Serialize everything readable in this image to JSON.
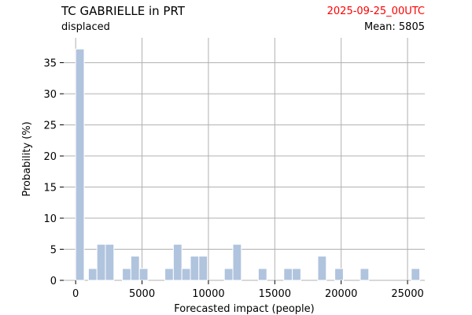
{
  "header": {
    "title": "TC GABRIELLE in PRT",
    "subtitle": "displaced",
    "date": "2025-09-25_00UTC",
    "mean_label": "Mean: 5805"
  },
  "colors": {
    "bar": "#b0c4de",
    "grid": "#b0b0b0",
    "date": "#ff0000"
  },
  "chart_data": {
    "type": "bar",
    "title": "TC GABRIELLE in PRT",
    "subtitle": "displaced",
    "xlabel": "Forecasted impact (people)",
    "ylabel": "Probability (%)",
    "xlim": [
      -900,
      26300
    ],
    "ylim": [
      0,
      39
    ],
    "grid": true,
    "bin_width": 640,
    "x_ticks": [
      0,
      5000,
      10000,
      15000,
      20000,
      25000
    ],
    "y_ticks": [
      0,
      5,
      10,
      15,
      20,
      25,
      30,
      35
    ],
    "bins": [
      {
        "x": 0,
        "value": 37.2
      },
      {
        "x": 960,
        "value": 1.9
      },
      {
        "x": 1600,
        "value": 5.8
      },
      {
        "x": 2240,
        "value": 5.8
      },
      {
        "x": 3520,
        "value": 1.9
      },
      {
        "x": 4160,
        "value": 3.9
      },
      {
        "x": 4800,
        "value": 1.9
      },
      {
        "x": 6720,
        "value": 1.9
      },
      {
        "x": 7360,
        "value": 5.8
      },
      {
        "x": 8000,
        "value": 1.9
      },
      {
        "x": 8640,
        "value": 3.9
      },
      {
        "x": 9280,
        "value": 3.9
      },
      {
        "x": 11200,
        "value": 1.9
      },
      {
        "x": 11840,
        "value": 5.8
      },
      {
        "x": 13760,
        "value": 1.9
      },
      {
        "x": 15680,
        "value": 1.9
      },
      {
        "x": 16320,
        "value": 1.9
      },
      {
        "x": 18240,
        "value": 3.9
      },
      {
        "x": 19520,
        "value": 1.9
      },
      {
        "x": 21440,
        "value": 1.9
      },
      {
        "x": 25280,
        "value": 1.9
      }
    ]
  }
}
